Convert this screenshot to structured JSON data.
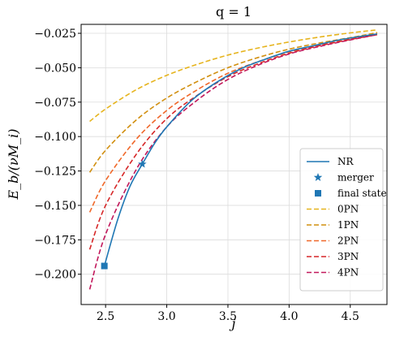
{
  "chart_data": {
    "type": "line",
    "title": "q = 1",
    "xlabel": "j",
    "ylabel": "E_b/(νM_i)",
    "xlim": [
      2.3,
      4.8
    ],
    "ylim": [
      -0.222,
      -0.0185
    ],
    "xticks": [
      2.5,
      3.0,
      3.5,
      4.0,
      4.5
    ],
    "xtick_labels": [
      "2.5",
      "3.0",
      "3.5",
      "4.0",
      "4.5"
    ],
    "yticks": [
      -0.2,
      -0.175,
      -0.15,
      -0.125,
      -0.1,
      -0.075,
      -0.05,
      -0.025
    ],
    "ytick_labels": [
      "−0.200",
      "−0.175",
      "−0.150",
      "−0.125",
      "−0.100",
      "−0.075",
      "−0.050",
      "−0.025"
    ],
    "grid": true,
    "legend_position": "lower right",
    "series": [
      {
        "name": "NR",
        "color": "#1f77b4",
        "dash": "solid",
        "points": [
          [
            2.49,
            -0.194
          ],
          [
            2.6,
            -0.16
          ],
          [
            2.7,
            -0.136
          ],
          [
            2.8,
            -0.12
          ],
          [
            2.9,
            -0.105
          ],
          [
            3.0,
            -0.093
          ],
          [
            3.2,
            -0.074
          ],
          [
            3.4,
            -0.061
          ],
          [
            3.6,
            -0.051
          ],
          [
            3.8,
            -0.044
          ],
          [
            4.0,
            -0.038
          ],
          [
            4.2,
            -0.034
          ],
          [
            4.4,
            -0.03
          ],
          [
            4.6,
            -0.027
          ],
          [
            4.72,
            -0.0255
          ]
        ]
      },
      {
        "name": "0PN",
        "color": "#e6b41e",
        "dash": "dashed",
        "points": [
          [
            2.37,
            -0.089
          ],
          [
            2.5,
            -0.08
          ],
          [
            2.75,
            -0.066
          ],
          [
            3.0,
            -0.0555
          ],
          [
            3.25,
            -0.0475
          ],
          [
            3.5,
            -0.0408
          ],
          [
            3.75,
            -0.0356
          ],
          [
            4.0,
            -0.0313
          ],
          [
            4.25,
            -0.0277
          ],
          [
            4.5,
            -0.0247
          ],
          [
            4.72,
            -0.0225
          ]
        ]
      },
      {
        "name": "1PN",
        "color": "#d18f0f",
        "dash": "dashed",
        "points": [
          [
            2.37,
            -0.126
          ],
          [
            2.5,
            -0.11
          ],
          [
            2.75,
            -0.088
          ],
          [
            3.0,
            -0.072
          ],
          [
            3.25,
            -0.06
          ],
          [
            3.5,
            -0.05
          ],
          [
            3.75,
            -0.0425
          ],
          [
            4.0,
            -0.0365
          ],
          [
            4.25,
            -0.032
          ],
          [
            4.5,
            -0.0282
          ],
          [
            4.72,
            -0.0245
          ]
        ]
      },
      {
        "name": "2PN",
        "color": "#f0682a",
        "dash": "dashed",
        "points": [
          [
            2.37,
            -0.155
          ],
          [
            2.5,
            -0.132
          ],
          [
            2.75,
            -0.102
          ],
          [
            3.0,
            -0.081
          ],
          [
            3.25,
            -0.066
          ],
          [
            3.5,
            -0.054
          ],
          [
            3.75,
            -0.0455
          ],
          [
            4.0,
            -0.0385
          ],
          [
            4.25,
            -0.0335
          ],
          [
            4.5,
            -0.029
          ],
          [
            4.72,
            -0.0255
          ]
        ]
      },
      {
        "name": "3PN",
        "color": "#d62728",
        "dash": "dashed",
        "points": [
          [
            2.37,
            -0.182
          ],
          [
            2.5,
            -0.15
          ],
          [
            2.75,
            -0.113
          ],
          [
            3.0,
            -0.087
          ],
          [
            3.25,
            -0.07
          ],
          [
            3.5,
            -0.0565
          ],
          [
            3.75,
            -0.047
          ],
          [
            4.0,
            -0.0395
          ],
          [
            4.25,
            -0.034
          ],
          [
            4.5,
            -0.0295
          ],
          [
            4.72,
            -0.026
          ]
        ]
      },
      {
        "name": "4PN",
        "color": "#c2185b",
        "dash": "dashed",
        "points": [
          [
            2.37,
            -0.211
          ],
          [
            2.5,
            -0.171
          ],
          [
            2.75,
            -0.124
          ],
          [
            3.0,
            -0.093
          ],
          [
            3.25,
            -0.0735
          ],
          [
            3.5,
            -0.0585
          ],
          [
            3.75,
            -0.048
          ],
          [
            4.0,
            -0.04
          ],
          [
            4.25,
            -0.0345
          ],
          [
            4.5,
            -0.0298
          ],
          [
            4.72,
            -0.026
          ]
        ]
      }
    ],
    "markers": [
      {
        "name": "merger",
        "shape": "star",
        "color": "#1f77b4",
        "x": 2.8,
        "y": -0.12
      },
      {
        "name": "final state",
        "shape": "square",
        "color": "#1f77b4",
        "x": 2.49,
        "y": -0.194
      }
    ]
  }
}
